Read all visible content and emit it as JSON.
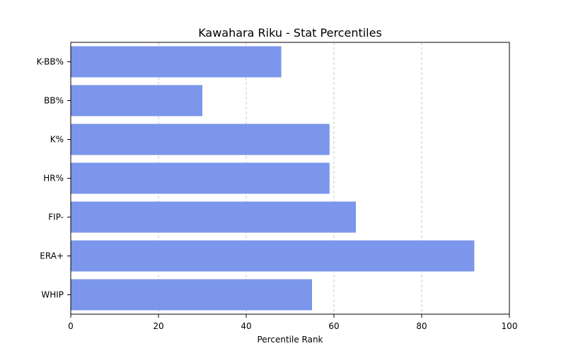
{
  "chart_data": {
    "type": "bar",
    "orientation": "horizontal",
    "title": "Kawahara Riku - Stat Percentiles",
    "xlabel": "Percentile Rank",
    "ylabel": "",
    "xlim": [
      0,
      100
    ],
    "xticks": [
      "0",
      "20",
      "40",
      "60",
      "80",
      "100"
    ],
    "categories": [
      "K-BB%",
      "BB%",
      "K%",
      "HR%",
      "FIP-",
      "ERA+",
      "WHIP"
    ],
    "values": [
      48,
      30,
      59,
      59,
      65,
      92,
      55
    ],
    "bar_color": "#7b96ea",
    "grid": "x-dashed"
  }
}
